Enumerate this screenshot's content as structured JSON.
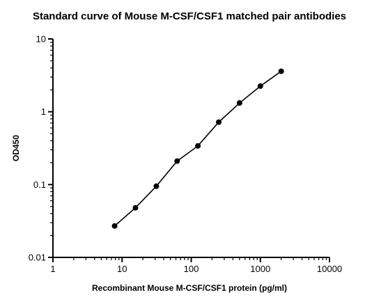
{
  "chart_data": {
    "type": "line",
    "title": "Standard curve of Mouse M-CSF/CSF1 matched pair antibodies",
    "xlabel": "Recombinant Mouse M-CSF/CSF1 protein (pg/ml)",
    "ylabel": "OD450",
    "xscale": "log",
    "yscale": "log",
    "xlim": [
      1,
      10000
    ],
    "ylim": [
      0.01,
      10
    ],
    "xticks": [
      "1",
      "10",
      "100",
      "1000",
      "10000"
    ],
    "yticks": [
      "0.01",
      "0.1",
      "1",
      "10"
    ],
    "grid": false,
    "series": [
      {
        "x": [
          7.8,
          15.6,
          31.25,
          62.5,
          125,
          250,
          500,
          1000,
          2000
        ],
        "y": [
          0.027,
          0.048,
          0.095,
          0.21,
          0.34,
          0.72,
          1.32,
          2.25,
          3.6
        ],
        "color": "#000000",
        "marker": "circle"
      }
    ]
  }
}
